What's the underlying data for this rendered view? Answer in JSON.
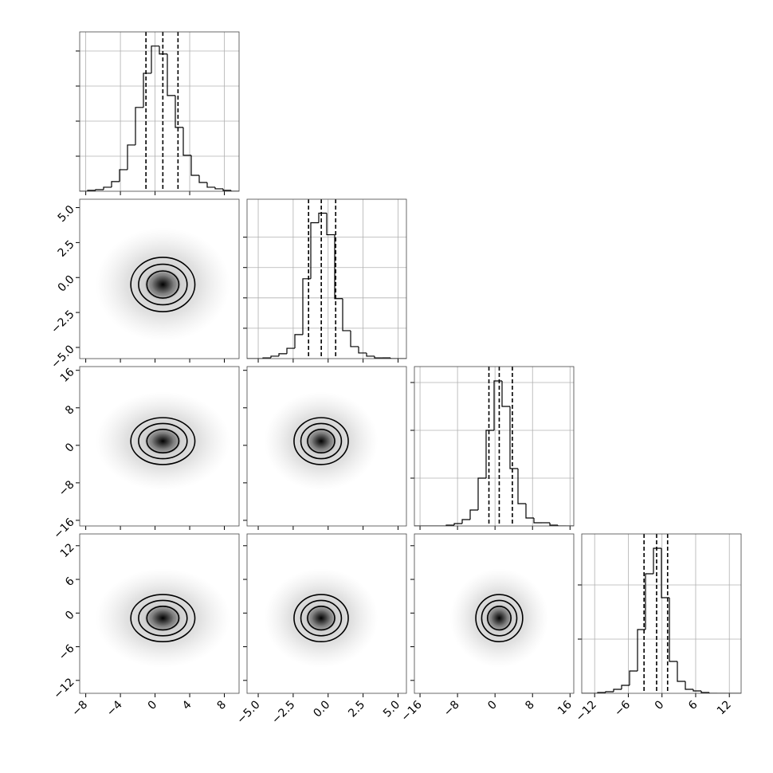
{
  "chart_data": [
    {
      "type": "histogram",
      "grid": true,
      "color": "#000000",
      "bins": [
        -8.7,
        -7.78,
        -6.86,
        -5.94,
        -5.02,
        -4.1,
        -3.18,
        -2.26,
        -1.34,
        -0.42,
        0.5,
        1.42,
        2.34,
        3.26,
        4.18,
        5.1,
        6.02,
        6.94,
        7.86,
        8.78,
        9.7
      ],
      "values": [
        0,
        5,
        9,
        23,
        55,
        123,
        264,
        478,
        673,
        828,
        783,
        546,
        364,
        205,
        91,
        50,
        23,
        14,
        5,
        0
      ],
      "quantiles": [
        -1.05,
        0.9,
        2.65
      ],
      "xlim": [
        -8.7,
        9.7
      ],
      "xticks": [
        -8,
        -4,
        0,
        4,
        8
      ],
      "ylim": [
        0,
        909
      ],
      "yticks": [
        200,
        400,
        600,
        800
      ]
    },
    {
      "type": "contour",
      "grid": false,
      "color": "#000000",
      "center": [
        0.9,
        -0.5
      ],
      "contours": {
        "rx": [
          1.85,
          2.8,
          3.7
        ],
        "ry": [
          0.97,
          1.45,
          1.94
        ]
      },
      "xlim": [
        -8.7,
        9.7
      ],
      "xticks": [
        -8,
        -4,
        0,
        4,
        8
      ],
      "ylim": [
        -5.8,
        5.6
      ],
      "yticks": [
        {
          "value": -5,
          "label": "−5.0"
        },
        {
          "value": -2.5,
          "label": "−2.5"
        },
        {
          "value": 0,
          "label": "0.0"
        },
        2.5,
        {
          "value": 5,
          "label": "5.0"
        }
      ]
    },
    {
      "type": "histogram",
      "grid": true,
      "color": "#000000",
      "bins": [
        -5.8,
        -5.23,
        -4.66,
        -4.09,
        -3.52,
        -2.95,
        -2.38,
        -1.81,
        -1.24,
        -0.67,
        -0.1,
        0.47,
        1.04,
        1.61,
        2.18,
        2.75,
        3.32,
        3.89,
        4.46,
        5.03,
        5.6
      ],
      "values": [
        0,
        0,
        5,
        16,
        32,
        68,
        158,
        526,
        895,
        958,
        816,
        395,
        184,
        79,
        37,
        16,
        5,
        5,
        0,
        0
      ],
      "quantiles": [
        -1.4,
        -0.49,
        0.54
      ],
      "xlim": [
        -5.8,
        5.6
      ],
      "xticks": [
        -5,
        -2.5,
        0,
        2.5,
        5
      ],
      "ylim": [
        0,
        1050
      ],
      "yticks": [
        200,
        400,
        600,
        800
      ]
    },
    {
      "type": "contour",
      "grid": false,
      "color": "#000000",
      "center": [
        0.9,
        0.9
      ],
      "contours": {
        "rx": [
          1.85,
          2.8,
          3.7
        ],
        "ry": [
          2.5,
          3.75,
          5.0
        ]
      },
      "xlim": [
        -8.7,
        9.7
      ],
      "xticks": [
        -8,
        -4,
        0,
        4,
        8
      ],
      "ylim": [
        -17.2,
        16.8
      ],
      "yticks": [
        {
          "value": -16,
          "label": "−16"
        },
        {
          "value": -8,
          "label": "−8"
        },
        0,
        8,
        16
      ]
    },
    {
      "type": "contour",
      "grid": false,
      "color": "#000000",
      "center": [
        -0.5,
        0.9
      ],
      "contours": {
        "rx": [
          0.97,
          1.45,
          1.94
        ],
        "ry": [
          2.5,
          3.75,
          5.0
        ]
      },
      "xlim": [
        -5.8,
        5.6
      ],
      "xticks": [
        -5,
        -2.5,
        0,
        2.5,
        5
      ],
      "ylim": [
        -17.2,
        16.8
      ],
      "yticks": [
        -16,
        -8,
        0,
        8,
        16
      ]
    },
    {
      "type": "histogram",
      "grid": true,
      "color": "#000000",
      "bins": [
        -17.2,
        -15.5,
        -13.8,
        -12.1,
        -10.4,
        -8.7,
        -7,
        -5.3,
        -3.6,
        -1.9,
        -0.2,
        1.5,
        3.2,
        4.9,
        6.6,
        8.3,
        10,
        11.7,
        13.4,
        15.1,
        16.8
      ],
      "values": [
        0,
        0,
        0,
        0,
        17,
        50,
        133,
        333,
        1000,
        2000,
        3033,
        2500,
        1200,
        467,
        167,
        67,
        67,
        17,
        0,
        0
      ],
      "quantiles": [
        -1.3,
        0.9,
        3.7
      ],
      "xlim": [
        -17.2,
        16.8
      ],
      "xticks": [
        -16,
        -8,
        0,
        8,
        16
      ],
      "ylim": [
        0,
        3333
      ],
      "yticks": [
        1000,
        2000,
        3000
      ]
    },
    {
      "type": "contour",
      "grid": false,
      "color": "#000000",
      "center": [
        0.9,
        -0.9
      ],
      "contours": {
        "rx": [
          1.85,
          2.8,
          3.7
        ],
        "ry": [
          2.1,
          3.15,
          4.2
        ]
      },
      "xlim": [
        -8.7,
        9.7
      ],
      "xticks": [
        {
          "value": -8,
          "label": "−8"
        },
        {
          "value": -4,
          "label": "−4"
        },
        0,
        4,
        8
      ],
      "ylim": [
        -14.3,
        14.1
      ],
      "yticks": [
        {
          "value": -12,
          "label": "−12"
        },
        {
          "value": -6,
          "label": "−6"
        },
        0,
        6,
        12
      ]
    },
    {
      "type": "contour",
      "grid": false,
      "color": "#000000",
      "center": [
        -0.5,
        -0.9
      ],
      "contours": {
        "rx": [
          0.97,
          1.45,
          1.94
        ],
        "ry": [
          2.1,
          3.15,
          4.2
        ]
      },
      "xlim": [
        -5.8,
        5.6
      ],
      "xticks": [
        {
          "value": -5,
          "label": "−5.0"
        },
        {
          "value": -2.5,
          "label": "−2.5"
        },
        {
          "value": 0,
          "label": "0.0"
        },
        2.5,
        {
          "value": 5,
          "label": "5.0"
        }
      ],
      "ylim": [
        -14.3,
        14.1
      ],
      "yticks": [
        -12,
        -6,
        0,
        6,
        12
      ]
    },
    {
      "type": "contour",
      "grid": false,
      "color": "#000000",
      "center": [
        0.9,
        -0.9
      ],
      "contours": {
        "rx": [
          2.5,
          3.75,
          5.0
        ],
        "ry": [
          2.1,
          3.15,
          4.2
        ]
      },
      "xlim": [
        -17.2,
        16.8
      ],
      "xticks": [
        {
          "value": -16,
          "label": "−16"
        },
        {
          "value": -8,
          "label": "−8"
        },
        0,
        8,
        16
      ],
      "ylim": [
        -14.3,
        14.1
      ],
      "yticks": [
        -12,
        -6,
        0,
        6,
        12
      ]
    },
    {
      "type": "histogram",
      "grid": true,
      "color": "#000000",
      "bins": [
        -14.3,
        -12.88,
        -11.46,
        -10.04,
        -8.62,
        -7.2,
        -5.78,
        -4.36,
        -2.94,
        -1.52,
        -0.1,
        1.32,
        2.74,
        4.16,
        5.58,
        7,
        8.42,
        9.84,
        11.26,
        12.68,
        14.1
      ],
      "values": [
        0,
        0,
        15,
        29,
        74,
        147,
        412,
        1176,
        2206,
        2676,
        1765,
        588,
        221,
        74,
        44,
        15,
        0,
        0,
        0,
        0
      ],
      "quantiles": [
        -3.2,
        -0.96,
        1.0
      ],
      "xlim": [
        -14.3,
        14.1
      ],
      "xticks": [
        {
          "value": -12,
          "label": "−12"
        },
        {
          "value": -6,
          "label": "−6"
        },
        0,
        6,
        12
      ],
      "ylim": [
        0,
        2941
      ],
      "yticks": [
        1000,
        2000
      ]
    }
  ]
}
